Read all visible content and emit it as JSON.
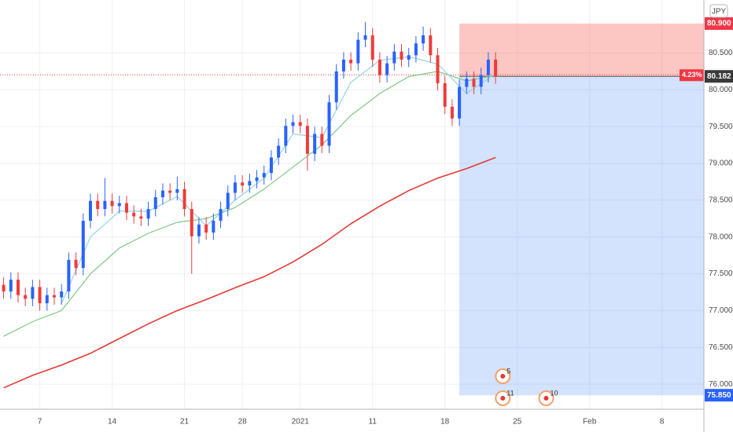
{
  "chart_data": {
    "type": "candlestick",
    "currency": "JPY",
    "up_color": "#2962ff",
    "down_color": "#ef3b3b",
    "grid": true,
    "xlim": [
      -0.5,
      96.8
    ],
    "ylim": [
      75.66,
      81.22
    ],
    "xticks": [
      {
        "value": 5,
        "label": "7"
      },
      {
        "value": 15,
        "label": "14"
      },
      {
        "value": 25,
        "label": "21"
      },
      {
        "value": 33,
        "label": "28"
      },
      {
        "value": 41,
        "label": "2021"
      },
      {
        "value": 51,
        "label": "11"
      },
      {
        "value": 61,
        "label": "18"
      },
      {
        "value": 71,
        "label": "25"
      },
      {
        "value": 81,
        "label": "Feb"
      },
      {
        "value": 91,
        "label": "8"
      }
    ],
    "yticks": [
      {
        "value": 76,
        "label": "76.000"
      },
      {
        "value": 76.5,
        "label": "76.500"
      },
      {
        "value": 77,
        "label": "77.000"
      },
      {
        "value": 77.5,
        "label": "77.500"
      },
      {
        "value": 78,
        "label": "78.000"
      },
      {
        "value": 78.5,
        "label": "78.500"
      },
      {
        "value": 79,
        "label": "79.000"
      },
      {
        "value": 79.5,
        "label": "79.500"
      },
      {
        "value": 80,
        "label": "80.000"
      },
      {
        "value": 80.5,
        "label": "80.500"
      }
    ],
    "open": [
      77.35,
      77.26,
      77.42,
      77.21,
      77.16,
      77.32,
      77.1,
      77.21,
      77.18,
      77.26,
      77.69,
      77.58,
      78.22,
      78.49,
      78.38,
      78.49,
      78.42,
      78.46,
      78.33,
      78.28,
      78.25,
      78.38,
      78.54,
      78.63,
      78.6,
      78.65,
      78.38,
      78.01,
      78.17,
      78.06,
      78.22,
      78.38,
      78.6,
      78.74,
      78.7,
      78.76,
      78.81,
      78.87,
      79.08,
      79.24,
      79.51,
      79.56,
      79.51,
      79.13,
      79.4,
      79.24,
      79.83,
      80.25,
      80.41,
      80.36,
      80.68,
      80.74,
      80.41,
      80.2,
      80.36,
      80.52,
      80.41,
      80.47,
      80.63,
      80.74,
      80.47,
      80.09,
      79.77,
      79.61,
      80.04,
      80.15,
      80.04,
      80.2,
      80.41
    ],
    "high": [
      77.45,
      77.52,
      77.52,
      77.31,
      77.42,
      77.42,
      77.31,
      77.31,
      77.36,
      77.79,
      77.79,
      78.32,
      78.59,
      78.59,
      78.8,
      78.59,
      78.56,
      78.56,
      78.43,
      78.38,
      78.48,
      78.64,
      78.73,
      78.73,
      78.82,
      78.75,
      78.48,
      78.27,
      78.27,
      78.32,
      78.48,
      78.7,
      78.84,
      78.84,
      78.86,
      78.91,
      78.97,
      79.18,
      79.34,
      79.61,
      79.66,
      79.66,
      79.61,
      79.5,
      79.5,
      79.93,
      80.35,
      80.51,
      80.51,
      80.78,
      80.92,
      80.84,
      80.51,
      80.46,
      80.62,
      80.62,
      80.57,
      80.73,
      80.86,
      80.84,
      80.57,
      80.19,
      79.87,
      80.14,
      80.25,
      80.25,
      80.3,
      80.51,
      80.51
    ],
    "low": [
      77.16,
      77.16,
      77.11,
      77.06,
      77.06,
      77.0,
      77.0,
      77.08,
      77.08,
      77.16,
      77.48,
      77.48,
      78.12,
      78.28,
      78.28,
      78.32,
      78.32,
      78.23,
      78.18,
      78.15,
      78.15,
      78.28,
      78.44,
      78.5,
      78.5,
      78.28,
      77.5,
      77.91,
      77.96,
      77.96,
      78.12,
      78.28,
      78.5,
      78.6,
      78.6,
      78.66,
      78.71,
      78.77,
      78.98,
      79.14,
      79.41,
      79.41,
      78.9,
      79.03,
      79.14,
      79.14,
      79.73,
      80.15,
      80.26,
      80.26,
      80.58,
      80.31,
      80.1,
      80.1,
      80.26,
      80.31,
      80.31,
      80.37,
      80.53,
      80.37,
      79.99,
      79.67,
      79.51,
      79.51,
      79.94,
      79.94,
      79.94,
      80.1,
      80.08
    ],
    "close": [
      77.26,
      77.42,
      77.21,
      77.16,
      77.32,
      77.1,
      77.21,
      77.18,
      77.26,
      77.69,
      77.58,
      78.22,
      78.49,
      78.38,
      78.49,
      78.42,
      78.46,
      78.33,
      78.28,
      78.25,
      78.38,
      78.54,
      78.63,
      78.6,
      78.65,
      78.38,
      78.01,
      78.17,
      78.06,
      78.22,
      78.38,
      78.6,
      78.74,
      78.7,
      78.76,
      78.81,
      78.87,
      79.08,
      79.24,
      79.51,
      79.56,
      79.51,
      79.13,
      79.4,
      79.24,
      79.83,
      80.25,
      80.41,
      80.36,
      80.68,
      80.74,
      80.41,
      80.2,
      80.36,
      80.52,
      80.41,
      80.47,
      80.63,
      80.74,
      80.47,
      80.09,
      79.77,
      79.61,
      80.04,
      80.15,
      80.04,
      80.2,
      80.41,
      80.18
    ],
    "ma_x": [
      0,
      4,
      8,
      12,
      16,
      20,
      24,
      28,
      32,
      36,
      40,
      44,
      48,
      52,
      56,
      60,
      64,
      68
    ],
    "series": [
      {
        "color": "#e53935",
        "values": [
          75.95,
          76.12,
          76.26,
          76.42,
          76.62,
          76.82,
          77.0,
          77.15,
          77.31,
          77.46,
          77.66,
          77.9,
          78.18,
          78.42,
          78.63,
          78.8,
          78.93,
          79.08
        ]
      },
      {
        "color": "#81c784",
        "values": [
          76.65,
          76.85,
          77.0,
          77.5,
          77.85,
          78.05,
          78.2,
          78.25,
          78.4,
          78.65,
          78.95,
          79.25,
          79.65,
          79.95,
          80.18,
          80.25,
          80.12,
          80.2
        ]
      },
      {
        "color": "#90d4e8",
        "values": [
          null,
          null,
          77.1,
          78.0,
          78.35,
          78.35,
          78.55,
          78.15,
          78.5,
          78.8,
          79.4,
          79.35,
          80.1,
          80.4,
          80.45,
          80.35,
          79.95,
          80.22
        ]
      }
    ],
    "position": {
      "start": 63,
      "entry": 80.182,
      "stop": {
        "value": 80.9,
        "label": "80.900"
      },
      "target": {
        "value": 75.85,
        "label": "75.850"
      },
      "percent": "4.23%"
    },
    "events": [
      {
        "x": 69,
        "label": "11"
      },
      {
        "x": 69,
        "label": "5"
      },
      {
        "x": 75,
        "label": "10"
      }
    ]
  }
}
